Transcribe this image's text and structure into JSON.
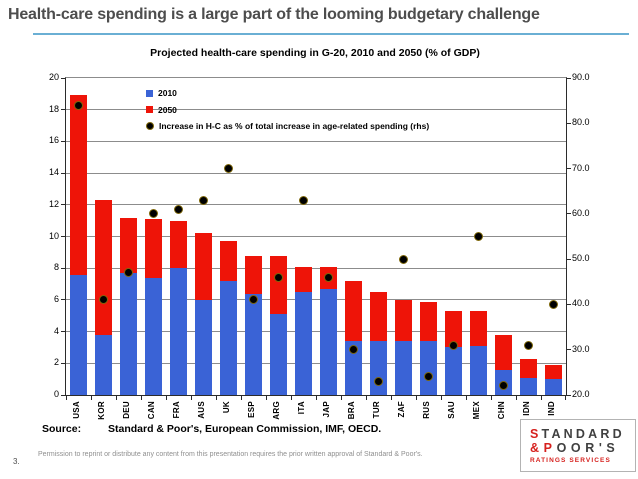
{
  "page": {
    "title": "Health-care spending is a large part of the looming budgetary challenge",
    "page_number": "3.",
    "accent_underline_color": "#6aafd4",
    "footer": {
      "source_label": "Source:",
      "source_text": "Standard & Poor's, European Commission, IMF, OECD.",
      "fine_print": "Permission to reprint or distribute any content from this presentation requires the prior written approval of Standard & Poor's."
    },
    "logo": {
      "line1_red": "S",
      "line1_dark": "TANDARD",
      "line2_red": "&P",
      "line2_dark": "OOR'S",
      "line3": "RATINGS SERVICES",
      "red": "#d6211e",
      "dark": "#404040"
    }
  },
  "chart_data": {
    "type": "bar",
    "title": "Projected health-care spending in G-20, 2010 and 2050 (% of GDP)",
    "categories": [
      "USA",
      "KOR",
      "DEU",
      "CAN",
      "FRA",
      "AUS",
      "UK",
      "ESP",
      "ARG",
      "ITA",
      "JAP",
      "BRA",
      "TUR",
      "ZAF",
      "RUS",
      "SAU",
      "MEX",
      "CHN",
      "IDN",
      "IND"
    ],
    "series": [
      {
        "name": "2010",
        "type": "bar",
        "color": "#3a63d6",
        "values": [
          7.6,
          3.8,
          7.7,
          7.4,
          8.0,
          6.0,
          7.2,
          6.4,
          5.1,
          6.5,
          6.7,
          3.4,
          3.4,
          3.4,
          3.4,
          3.0,
          3.1,
          1.6,
          1.1,
          1.0
        ]
      },
      {
        "name": "2050",
        "type": "bar",
        "color": "#ee1408",
        "note": "values are 2050 totals (% of GDP); red segment is drawn stacked from the 2010 value up to this total",
        "values": [
          18.9,
          12.3,
          11.2,
          11.1,
          11.0,
          10.2,
          9.7,
          8.8,
          8.8,
          8.1,
          8.1,
          7.2,
          6.5,
          6.0,
          5.9,
          5.3,
          5.3,
          3.8,
          2.3,
          1.9
        ]
      },
      {
        "name": "Increase in H-C as % of total increase in age-related spending (rhs)",
        "type": "scatter",
        "axis": "right",
        "color": "#000000",
        "marker_ring": "#7d6608",
        "values": [
          84,
          41,
          47,
          60,
          61,
          63,
          70,
          41,
          46,
          63,
          46,
          30,
          23,
          50,
          24,
          31,
          55,
          22,
          31,
          40
        ]
      }
    ],
    "left_axis": {
      "min": 0,
      "max": 20,
      "step": 2,
      "tick_labels": [
        "20",
        "18",
        "16",
        "14",
        "12",
        "10",
        "8",
        "6",
        "4",
        "2",
        "0"
      ]
    },
    "right_axis": {
      "min": 20,
      "max": 90,
      "step": 10,
      "tick_labels": [
        "90.0",
        "80.0",
        "70.0",
        "60.0",
        "50.0",
        "40.0",
        "30.0",
        "20.0"
      ]
    },
    "grid": true,
    "legend_position": "inside-top-left"
  }
}
